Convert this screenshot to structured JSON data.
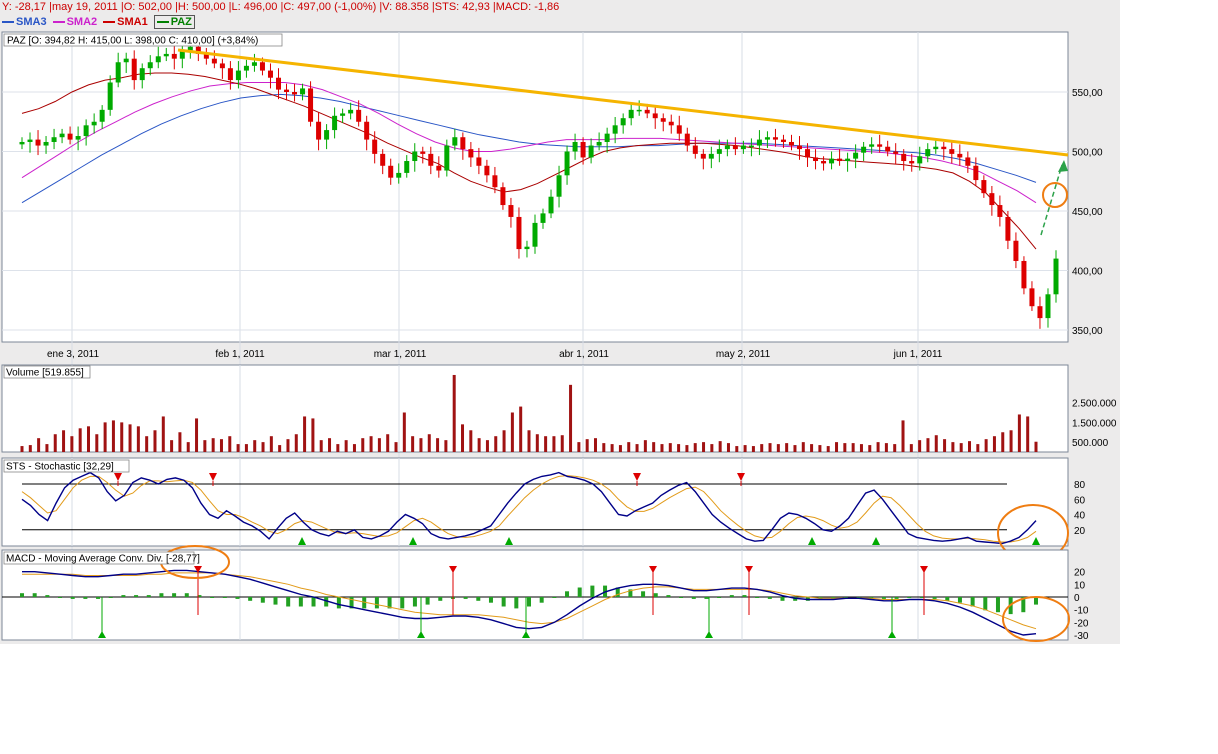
{
  "infobar": "Y: -28,17 |may 19, 2011 |O: 502,00 |H: 500,00 |L: 496,00 |C: 497,00 (-1,00%) |V: 88.358 |STS: 42,93 |MACD: -1,86",
  "legend": [
    {
      "name": "SMA3",
      "color": "#2a56c6"
    },
    {
      "name": "SMA2",
      "color": "#cc22cc"
    },
    {
      "name": "SMA1",
      "color": "#cc0000"
    },
    {
      "name": "PAZ",
      "color": "#008000",
      "boxed": true
    }
  ],
  "colors": {
    "up": "#00aa00",
    "down": "#dd0000",
    "trend": "#f5b400",
    "annotation": "#ef7d12",
    "volume": "#a01212",
    "stoch_main": "#000088",
    "stoch_signal": "#e29b1a"
  },
  "chart_data": [
    {
      "type": "candlestick",
      "title": "PAZ [O: 394,82  H: 415,00  L: 398,00  C: 410,00] (+3,84%)",
      "x_tick_labels": [
        "ene 3, 2011",
        "feb 1, 2011",
        "mar 1, 2011",
        "abr 1, 2011",
        "may 2, 2011",
        "jun 1, 2011"
      ],
      "y_tick_labels": [
        "550,00",
        "500,00",
        "450,00",
        "400,00",
        "350,00"
      ],
      "y_ticks": [
        550,
        500,
        450,
        400,
        350
      ],
      "ylim": [
        340,
        600
      ],
      "close": [
        508,
        510,
        505,
        508,
        512,
        515,
        510,
        513,
        522,
        525,
        535,
        558,
        575,
        578,
        560,
        570,
        575,
        580,
        582,
        578,
        585,
        588,
        582,
        578,
        574,
        570,
        560,
        568,
        572,
        575,
        568,
        562,
        552,
        550,
        548,
        553,
        525,
        510,
        518,
        530,
        532,
        535,
        525,
        510,
        498,
        488,
        478,
        482,
        492,
        500,
        498,
        488,
        484,
        505,
        512,
        502,
        495,
        488,
        480,
        470,
        455,
        445,
        418,
        420,
        440,
        448,
        462,
        480,
        500,
        508,
        495,
        505,
        508,
        515,
        522,
        528,
        535,
        535,
        532,
        528,
        525,
        522,
        515,
        505,
        498,
        494,
        498,
        502,
        505,
        502,
        505,
        505,
        510,
        512,
        510,
        508,
        505,
        502,
        495,
        492,
        490,
        494,
        492,
        494,
        499,
        504,
        506,
        504,
        500,
        498,
        492,
        490,
        496,
        502,
        504,
        502,
        498,
        495,
        488,
        476,
        465,
        455,
        445,
        425,
        408,
        385,
        370,
        360,
        380,
        410
      ],
      "sma1_values": [
        532,
        536,
        542,
        550,
        556,
        560,
        562,
        565,
        566,
        566,
        565,
        563,
        560,
        557,
        553,
        548,
        543,
        538,
        532,
        526,
        520,
        514,
        507,
        501,
        495,
        490,
        482,
        475,
        470,
        466,
        468,
        473,
        480,
        487,
        494,
        500,
        503,
        505,
        506,
        507,
        507,
        507,
        506,
        505,
        503,
        501,
        499,
        496,
        494,
        493,
        492,
        491,
        490,
        489,
        487,
        485,
        482,
        475,
        465,
        450,
        435,
        418
      ],
      "sma2_values": [
        478,
        488,
        498,
        508,
        517,
        525,
        533,
        540,
        546,
        551,
        555,
        557,
        558,
        558,
        558,
        556,
        552,
        546,
        540,
        532,
        523,
        515,
        508,
        503,
        500,
        500,
        502,
        505,
        508,
        510,
        510,
        510,
        511,
        511,
        511,
        510,
        509,
        508,
        507,
        506,
        505,
        504,
        503,
        502,
        501,
        500,
        499,
        497,
        495,
        492,
        488,
        483,
        475,
        467,
        457
      ],
      "sma3_values": [
        457,
        467,
        477,
        487,
        497,
        506,
        515,
        523,
        530,
        536,
        541,
        545,
        547,
        548,
        547,
        545,
        542,
        538,
        534,
        530,
        526,
        522,
        518,
        514,
        511,
        508,
        506,
        505,
        504,
        504,
        504,
        505,
        505,
        506,
        507,
        507,
        507,
        507,
        506,
        505,
        504,
        503,
        502,
        501,
        500,
        499,
        497,
        494,
        490,
        485,
        480,
        474
      ]
    },
    {
      "type": "bar",
      "title": "Volume [519.855]",
      "y_tick_labels": [
        "2.500.000",
        "1.500.000",
        "500.000"
      ],
      "y_ticks": [
        2500000,
        1500000,
        500000
      ],
      "ylim": [
        0,
        4000000
      ],
      "values": [
        300000,
        350000,
        700000,
        400000,
        900000,
        1100000,
        800000,
        1200000,
        1300000,
        900000,
        1500000,
        1600000,
        1500000,
        1400000,
        1300000,
        800000,
        1100000,
        1800000,
        600000,
        1000000,
        500000,
        1700000,
        600000,
        700000,
        650000,
        800000,
        400000,
        400000,
        600000,
        500000,
        800000,
        350000,
        650000,
        900000,
        1800000,
        1700000,
        600000,
        700000,
        400000,
        600000,
        400000,
        700000,
        800000,
        700000,
        900000,
        500000,
        2000000,
        800000,
        700000,
        900000,
        700000,
        600000,
        3900000,
        1400000,
        1100000,
        700000,
        600000,
        800000,
        1100000,
        2000000,
        2300000,
        1100000,
        900000,
        800000,
        800000,
        850000,
        3400000,
        500000,
        650000,
        700000,
        450000,
        400000,
        350000,
        500000,
        400000,
        600000,
        500000,
        400000,
        450000,
        400000,
        350000,
        450000,
        500000,
        400000,
        550000,
        450000,
        300000,
        350000,
        300000,
        400000,
        450000,
        400000,
        450000,
        350000,
        500000,
        400000,
        350000,
        300000,
        500000,
        450000,
        450000,
        400000,
        350000,
        500000,
        450000,
        400000,
        1600000,
        400000,
        600000,
        700000,
        850000,
        650000,
        500000,
        450000,
        550000,
        400000,
        650000,
        800000,
        1000000,
        1100000,
        1900000,
        1800000,
        519855
      ]
    },
    {
      "type": "line",
      "title": "STS - Stochastic [32,29]",
      "y_tick_labels": [
        "80",
        "60",
        "40",
        "20"
      ],
      "y_ticks": [
        80,
        60,
        40,
        20
      ],
      "ylim": [
        0,
        100
      ],
      "main": [
        60,
        52,
        40,
        32,
        55,
        75,
        85,
        90,
        95,
        88,
        70,
        58,
        65,
        82,
        88,
        85,
        80,
        86,
        88,
        85,
        75,
        55,
        40,
        35,
        45,
        38,
        30,
        25,
        18,
        8,
        22,
        35,
        42,
        30,
        20,
        15,
        12,
        18,
        15,
        20,
        10,
        8,
        12,
        18,
        30,
        40,
        35,
        28,
        15,
        10,
        8,
        10,
        12,
        15,
        20,
        25,
        40,
        55,
        68,
        80,
        86,
        90,
        92,
        95,
        90,
        88,
        85,
        80,
        70,
        55,
        40,
        38,
        45,
        50,
        55,
        65,
        72,
        78,
        82,
        70,
        55,
        40,
        30,
        22,
        15,
        8,
        5,
        6,
        20,
        35,
        42,
        40,
        35,
        28,
        20,
        18,
        25,
        35,
        52,
        68,
        72,
        60,
        45,
        30,
        15,
        10,
        8,
        6,
        5,
        6,
        8,
        10,
        5,
        4,
        3,
        2,
        5,
        10,
        20,
        32
      ],
      "signal": [
        70,
        62,
        52,
        42,
        45,
        60,
        75,
        85,
        90,
        90,
        82,
        72,
        64,
        68,
        78,
        84,
        84,
        83,
        84,
        85,
        82,
        72,
        58,
        45,
        40,
        40,
        36,
        30,
        25,
        18,
        15,
        20,
        28,
        32,
        30,
        25,
        20,
        16,
        15,
        16,
        15,
        13,
        11,
        12,
        16,
        24,
        32,
        35,
        30,
        22,
        15,
        11,
        10,
        11,
        14,
        18,
        25,
        38,
        50,
        62,
        72,
        80,
        86,
        90,
        91,
        90,
        88,
        85,
        80,
        72,
        60,
        50,
        44,
        44,
        48,
        55,
        62,
        68,
        74,
        76,
        70,
        58,
        45,
        35,
        26,
        18,
        12,
        9,
        10,
        18,
        28,
        36,
        38,
        36,
        32,
        26,
        22,
        24,
        30,
        42,
        55,
        64,
        62,
        52,
        40,
        28,
        18,
        12,
        9,
        8,
        8,
        9,
        8,
        7,
        5,
        4,
        4,
        6,
        10,
        18
      ]
    },
    {
      "type": "line",
      "title": "MACD - Moving Average Conv. Div. [-28,77]",
      "y_tick_labels": [
        "20",
        "10",
        "0",
        "-10",
        "-20",
        "-30"
      ],
      "y_ticks": [
        20,
        10,
        0,
        -10,
        -20,
        -30
      ],
      "ylim": [
        -33,
        27
      ],
      "macd": [
        20,
        20,
        19,
        18,
        17,
        16,
        16,
        17,
        18,
        18,
        19,
        20,
        21,
        21,
        20,
        19,
        18,
        16,
        14,
        11,
        8,
        5,
        2,
        0,
        -3,
        -6,
        -8,
        -10,
        -12,
        -14,
        -16,
        -17,
        -17,
        -16,
        -15,
        -15,
        -16,
        -18,
        -21,
        -24,
        -25,
        -24,
        -20,
        -14,
        -7,
        -1,
        4,
        7,
        9,
        10,
        10,
        9,
        7,
        5,
        5,
        6,
        7,
        7,
        6,
        4,
        1,
        -1,
        -2,
        -2,
        -2,
        -1,
        -1,
        -2,
        -3,
        -3,
        -2,
        -2,
        -3,
        -5,
        -8,
        -12,
        -17,
        -22,
        -27,
        -30,
        -29
      ],
      "signal": [
        18,
        18,
        18,
        18,
        18,
        17,
        17,
        17,
        17,
        17,
        18,
        18,
        19,
        19,
        19,
        19,
        18,
        17,
        16,
        14,
        12,
        10,
        7,
        5,
        2,
        0,
        -2,
        -4,
        -6,
        -8,
        -10,
        -12,
        -13,
        -14,
        -14,
        -14,
        -14,
        -15,
        -16,
        -18,
        -20,
        -21,
        -20,
        -17,
        -12,
        -7,
        -2,
        2,
        5,
        7,
        8,
        8,
        7,
        6,
        6,
        6,
        6,
        6,
        6,
        5,
        3,
        1,
        0,
        -1,
        -1,
        -1,
        -1,
        -1,
        -2,
        -2,
        -2,
        -2,
        -2,
        -3,
        -5,
        -7,
        -10,
        -14,
        -18,
        -22,
        -25
      ]
    }
  ]
}
